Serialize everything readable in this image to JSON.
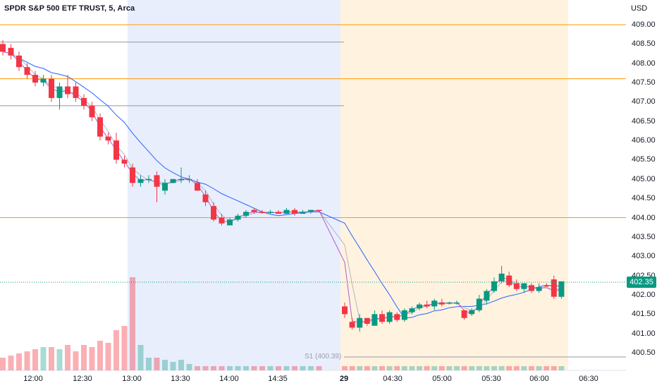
{
  "header": {
    "title": "SPDR S&P 500 ETF TRUST, 5, Arca",
    "currency": "USD"
  },
  "colors": {
    "up": "#089981",
    "down": "#f23645",
    "ma_blue": "#2962ff",
    "ma_purple": "#b05bd0",
    "ma_grey": "#b2b5be",
    "level_orange": "#ff9800",
    "session_blue": "#e8eefc",
    "session_orange": "#fff3e0"
  },
  "last_price_label": "402.35",
  "pivot_label": "S1 (400.39)",
  "chart_data": {
    "type": "candlestick",
    "y_ticks": [
      "409.00",
      "408.50",
      "408.00",
      "407.50",
      "407.00",
      "406.50",
      "406.00",
      "405.50",
      "405.00",
      "404.50",
      "404.00",
      "403.50",
      "403.00",
      "402.50",
      "402.00",
      "401.50",
      "401.00",
      "400.50"
    ],
    "x_ticks": [
      {
        "label": "12:00",
        "bold": false
      },
      {
        "label": "12:30",
        "bold": false
      },
      {
        "label": "13:00",
        "bold": false
      },
      {
        "label": "13:30",
        "bold": false
      },
      {
        "label": "14:00",
        "bold": false
      },
      {
        "label": "14:35",
        "bold": false
      },
      {
        "label": "29",
        "bold": true
      },
      {
        "label": "04:30",
        "bold": false
      },
      {
        "label": "05:00",
        "bold": false
      },
      {
        "label": "05:30",
        "bold": false
      },
      {
        "label": "06:00",
        "bold": false
      },
      {
        "label": "06:30",
        "bold": false
      }
    ],
    "ylim": [
      400.4,
      409.6
    ],
    "horizontal_levels": [
      {
        "price": 409.0,
        "color": "#ff9800",
        "full": true
      },
      {
        "price": 408.55,
        "color": "#9598a1",
        "full": false
      },
      {
        "price": 407.6,
        "color": "#ff9800",
        "full": true
      },
      {
        "price": 406.9,
        "color": "#9598a1",
        "full": false
      },
      {
        "price": 404.0,
        "color": "#ff9800",
        "full": true
      },
      {
        "price": 400.39,
        "color": "#9598a1",
        "full": false
      }
    ],
    "candles_session1": [
      {
        "o": 408.5,
        "h": 408.6,
        "l": 408.2,
        "c": 408.3
      },
      {
        "o": 408.4,
        "h": 408.5,
        "l": 408.1,
        "c": 408.2
      },
      {
        "o": 408.2,
        "h": 408.3,
        "l": 407.8,
        "c": 407.9
      },
      {
        "o": 407.9,
        "h": 408.0,
        "l": 407.6,
        "c": 407.7
      },
      {
        "o": 407.7,
        "h": 407.8,
        "l": 407.4,
        "c": 407.5
      },
      {
        "o": 407.5,
        "h": 407.7,
        "l": 407.4,
        "c": 407.6
      },
      {
        "o": 407.6,
        "h": 407.7,
        "l": 407.0,
        "c": 407.1
      },
      {
        "o": 407.1,
        "h": 407.5,
        "l": 406.8,
        "c": 407.4
      },
      {
        "o": 407.4,
        "h": 407.7,
        "l": 407.1,
        "c": 407.2
      },
      {
        "o": 407.4,
        "h": 407.5,
        "l": 407.0,
        "c": 407.1
      },
      {
        "o": 407.1,
        "h": 407.2,
        "l": 406.8,
        "c": 406.9
      },
      {
        "o": 406.9,
        "h": 407.0,
        "l": 406.5,
        "c": 406.6
      },
      {
        "o": 406.6,
        "h": 406.7,
        "l": 406.0,
        "c": 406.1
      },
      {
        "o": 406.1,
        "h": 406.2,
        "l": 405.9,
        "c": 406.0
      },
      {
        "o": 406.0,
        "h": 406.2,
        "l": 405.4,
        "c": 405.5
      },
      {
        "o": 405.5,
        "h": 405.6,
        "l": 405.3,
        "c": 405.4
      },
      {
        "o": 405.3,
        "h": 405.4,
        "l": 404.8,
        "c": 404.9
      },
      {
        "o": 404.9,
        "h": 405.1,
        "l": 404.8,
        "c": 405.0
      },
      {
        "o": 405.0,
        "h": 405.1,
        "l": 404.9,
        "c": 405.0
      },
      {
        "o": 405.1,
        "h": 405.2,
        "l": 404.4,
        "c": 404.8
      },
      {
        "o": 404.7,
        "h": 405.0,
        "l": 404.6,
        "c": 404.9
      },
      {
        "o": 404.9,
        "h": 405.0,
        "l": 404.9,
        "c": 405.0
      },
      {
        "o": 405.0,
        "h": 405.3,
        "l": 404.9,
        "c": 405.0
      },
      {
        "o": 405.0,
        "h": 405.1,
        "l": 404.9,
        "c": 405.0
      },
      {
        "o": 404.9,
        "h": 405.0,
        "l": 404.7,
        "c": 404.7
      },
      {
        "o": 404.6,
        "h": 404.7,
        "l": 404.3,
        "c": 404.4
      },
      {
        "o": 404.3,
        "h": 404.4,
        "l": 403.9,
        "c": 403.95
      },
      {
        "o": 404.0,
        "h": 404.1,
        "l": 403.8,
        "c": 403.85
      },
      {
        "o": 403.8,
        "h": 404.0,
        "l": 403.8,
        "c": 403.95
      },
      {
        "o": 403.95,
        "h": 404.1,
        "l": 403.9,
        "c": 404.05
      },
      {
        "o": 404.05,
        "h": 404.2,
        "l": 404.0,
        "c": 404.15
      },
      {
        "o": 404.2,
        "h": 404.25,
        "l": 404.1,
        "c": 404.15
      },
      {
        "o": 404.15,
        "h": 404.2,
        "l": 404.1,
        "c": 404.12
      },
      {
        "o": 404.12,
        "h": 404.2,
        "l": 404.1,
        "c": 404.15
      },
      {
        "o": 404.15,
        "h": 404.2,
        "l": 404.1,
        "c": 404.1
      },
      {
        "o": 404.1,
        "h": 404.25,
        "l": 404.1,
        "c": 404.2
      },
      {
        "o": 404.2,
        "h": 404.25,
        "l": 404.05,
        "c": 404.1
      },
      {
        "o": 404.1,
        "h": 404.2,
        "l": 404.1,
        "c": 404.15
      },
      {
        "o": 404.15,
        "h": 404.2,
        "l": 404.1,
        "c": 404.2
      },
      {
        "o": 404.2,
        "h": 404.2,
        "l": 404.15,
        "c": 404.18
      }
    ],
    "candles_session2": [
      {
        "o": 401.7,
        "h": 401.8,
        "l": 401.4,
        "c": 401.5
      },
      {
        "o": 401.3,
        "h": 401.4,
        "l": 401.1,
        "c": 401.15
      },
      {
        "o": 401.15,
        "h": 401.5,
        "l": 401.05,
        "c": 401.4
      },
      {
        "o": 401.4,
        "h": 401.4,
        "l": 401.2,
        "c": 401.25
      },
      {
        "o": 401.2,
        "h": 401.6,
        "l": 401.2,
        "c": 401.5
      },
      {
        "o": 401.5,
        "h": 401.6,
        "l": 401.25,
        "c": 401.3
      },
      {
        "o": 401.3,
        "h": 401.6,
        "l": 401.25,
        "c": 401.55
      },
      {
        "o": 401.5,
        "h": 401.55,
        "l": 401.3,
        "c": 401.35
      },
      {
        "o": 401.35,
        "h": 401.65,
        "l": 401.3,
        "c": 401.6
      },
      {
        "o": 401.55,
        "h": 401.7,
        "l": 401.5,
        "c": 401.65
      },
      {
        "o": 401.65,
        "h": 401.8,
        "l": 401.6,
        "c": 401.75
      },
      {
        "o": 401.75,
        "h": 401.85,
        "l": 401.65,
        "c": 401.7
      },
      {
        "o": 401.7,
        "h": 401.9,
        "l": 401.6,
        "c": 401.85
      },
      {
        "o": 401.8,
        "h": 401.9,
        "l": 401.7,
        "c": 401.75
      },
      {
        "o": 401.78,
        "h": 401.82,
        "l": 401.75,
        "c": 401.8
      },
      {
        "o": 401.8,
        "h": 401.85,
        "l": 401.75,
        "c": 401.8
      },
      {
        "o": 401.6,
        "h": 401.6,
        "l": 401.35,
        "c": 401.4
      },
      {
        "o": 401.5,
        "h": 401.65,
        "l": 401.45,
        "c": 401.6
      },
      {
        "o": 401.6,
        "h": 402.0,
        "l": 401.55,
        "c": 401.9
      },
      {
        "o": 401.85,
        "h": 402.15,
        "l": 401.75,
        "c": 402.1
      },
      {
        "o": 402.1,
        "h": 402.45,
        "l": 402.05,
        "c": 402.35
      },
      {
        "o": 402.35,
        "h": 402.75,
        "l": 402.3,
        "c": 402.55
      },
      {
        "o": 402.5,
        "h": 402.6,
        "l": 402.2,
        "c": 402.25
      },
      {
        "o": 402.3,
        "h": 402.4,
        "l": 402.1,
        "c": 402.15
      },
      {
        "o": 402.15,
        "h": 402.3,
        "l": 402.05,
        "c": 402.3
      },
      {
        "o": 402.25,
        "h": 402.3,
        "l": 402.05,
        "c": 402.1
      },
      {
        "o": 402.1,
        "h": 402.3,
        "l": 402.05,
        "c": 402.2
      },
      {
        "o": 402.25,
        "h": 402.3,
        "l": 402.2,
        "c": 402.22
      },
      {
        "o": 402.4,
        "h": 402.5,
        "l": 401.9,
        "c": 401.95
      },
      {
        "o": 401.95,
        "h": 402.35,
        "l": 401.9,
        "c": 402.35
      }
    ],
    "volume_session1": [
      6,
      7,
      8,
      9,
      10,
      11,
      11,
      10,
      12,
      9,
      12,
      11,
      14,
      13,
      19,
      21,
      44,
      12,
      6,
      6,
      5,
      4,
      5,
      3,
      2,
      2,
      2,
      2,
      2,
      2,
      2,
      2,
      2,
      2,
      2,
      2,
      2,
      2,
      2,
      2
    ],
    "volume_session2": [
      2,
      2,
      2,
      2,
      2,
      2,
      2,
      2,
      2,
      2,
      2,
      2,
      2,
      2,
      2,
      2,
      2,
      2,
      2,
      2,
      2,
      2,
      2,
      2,
      2,
      2,
      2,
      2,
      2,
      2
    ]
  }
}
